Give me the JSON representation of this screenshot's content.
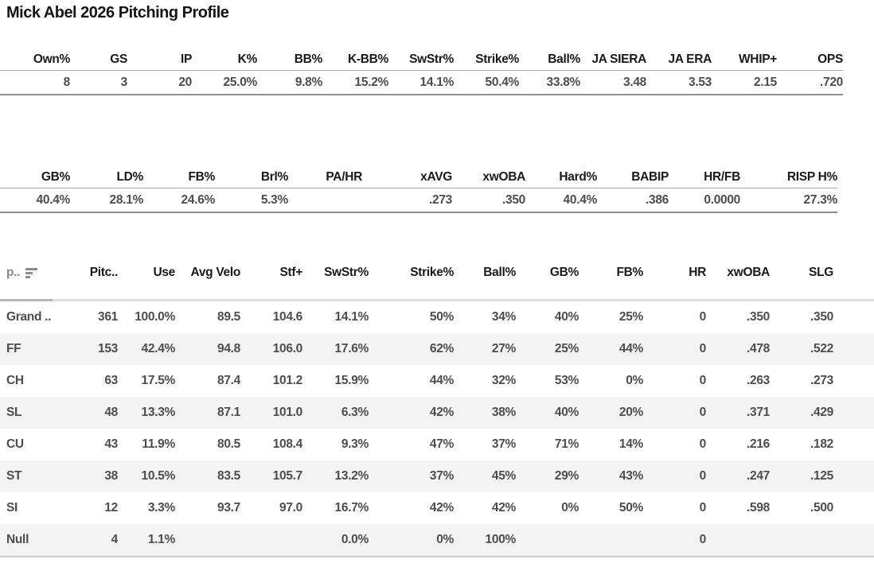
{
  "title": "Mick Abel 2026 Pitching Profile",
  "summary_table_1": {
    "columns": [
      "Own%",
      "GS",
      "IP",
      "K%",
      "BB%",
      "K-BB%",
      "SwStr%",
      "Strike%",
      "Ball%",
      "JA SIERA",
      "JA ERA",
      "WHIP+",
      "OPS"
    ],
    "values": [
      "8",
      "3",
      "20",
      "25.0%",
      "9.8%",
      "15.2%",
      "14.1%",
      "50.4%",
      "33.8%",
      "3.48",
      "3.53",
      "2.15",
      ".720"
    ]
  },
  "summary_table_2": {
    "columns": [
      "GB%",
      "LD%",
      "FB%",
      "Brl%",
      "PA/HR",
      "xAVG",
      "xwOBA",
      "Hard%",
      "BABIP",
      "HR/FB",
      "RISP H%"
    ],
    "values": [
      "40.4%",
      "28.1%",
      "24.6%",
      "5.3%",
      "",
      ".273",
      ".350",
      "40.4%",
      ".386",
      "0.0000",
      "27.3%"
    ]
  },
  "pitch_table": {
    "columns": [
      "p..",
      "Pitc..",
      "Use",
      "Avg Velo",
      "Stf+",
      "SwStr%",
      "Strike%",
      "Ball%",
      "GB%",
      "FB%",
      "HR",
      "xwOBA",
      "SLG"
    ],
    "sort_icon": "sort-descending-bars",
    "rows": [
      [
        "Grand ..",
        "361",
        "100.0%",
        "89.5",
        "104.6",
        "14.1%",
        "50%",
        "34%",
        "40%",
        "25%",
        "0",
        ".350",
        ".350"
      ],
      [
        "FF",
        "153",
        "42.4%",
        "94.8",
        "106.0",
        "17.6%",
        "62%",
        "27%",
        "25%",
        "44%",
        "0",
        ".478",
        ".522"
      ],
      [
        "CH",
        "63",
        "17.5%",
        "87.4",
        "101.2",
        "15.9%",
        "44%",
        "32%",
        "53%",
        "0%",
        "0",
        ".263",
        ".273"
      ],
      [
        "SL",
        "48",
        "13.3%",
        "87.1",
        "101.0",
        "6.3%",
        "42%",
        "38%",
        "40%",
        "20%",
        "0",
        ".371",
        ".429"
      ],
      [
        "CU",
        "43",
        "11.9%",
        "80.5",
        "108.4",
        "9.3%",
        "47%",
        "37%",
        "71%",
        "14%",
        "0",
        ".216",
        ".182"
      ],
      [
        "ST",
        "38",
        "10.5%",
        "83.5",
        "105.7",
        "13.2%",
        "37%",
        "45%",
        "29%",
        "43%",
        "0",
        ".247",
        ".125"
      ],
      [
        "SI",
        "12",
        "3.3%",
        "93.7",
        "97.0",
        "16.7%",
        "42%",
        "42%",
        "0%",
        "50%",
        "0",
        ".598",
        ".500"
      ],
      [
        "Null",
        "4",
        "1.1%",
        "",
        "",
        "0.0%",
        "0%",
        "100%",
        "",
        "",
        "0",
        "",
        ""
      ]
    ]
  },
  "colors": {
    "header_text": "#1a1a1a",
    "value_text": "#4d4d4d",
    "muted_header_text": "#8a8a8a",
    "row_alt_background": "#f3f3f3",
    "rule_light": "#a6a6a6",
    "rule_dark": "#8f8f8f",
    "table_bottom_rule": "#c9c9c9",
    "sort_icon": "#8c8c8c"
  }
}
